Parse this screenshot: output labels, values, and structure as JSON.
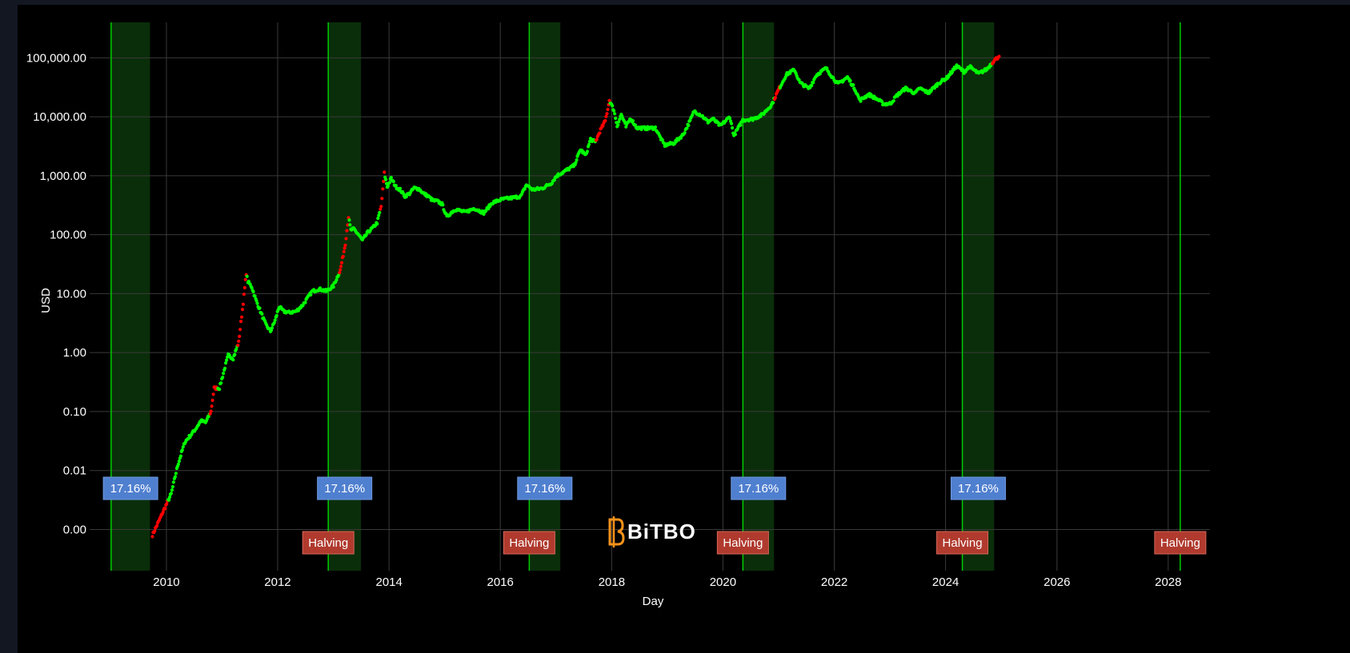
{
  "chart_data": {
    "type": "scatter",
    "xlabel": "Day",
    "ylabel": "USD",
    "y_scale": "log",
    "ylim": [
      0.0002,
      400000
    ],
    "xlim": [
      "2008-08-15",
      "2028-10-01"
    ],
    "x_ticks": [
      "2010",
      "2012",
      "2014",
      "2016",
      "2018",
      "2020",
      "2022",
      "2024",
      "2026",
      "2028"
    ],
    "y_ticks": [
      {
        "value": 0.001,
        "label": "0.00"
      },
      {
        "value": 0.01,
        "label": "0.01"
      },
      {
        "value": 0.1,
        "label": "0.10"
      },
      {
        "value": 1,
        "label": "1.00"
      },
      {
        "value": 10,
        "label": "10.00"
      },
      {
        "value": 100,
        "label": "100.00"
      },
      {
        "value": 1000,
        "label": "1,000.00"
      },
      {
        "value": 10000,
        "label": "10,000.00"
      },
      {
        "value": 100000,
        "label": "100,000.00"
      }
    ],
    "grid": true,
    "colors": {
      "background": "#000000",
      "grid": "#3a3a3a",
      "price_up": "#00ff00",
      "price_highlight": "#ff0000",
      "halving_line": "#00cc00",
      "band_fill": "#0a2e0a",
      "pct_label_bg": "#4f7fcf",
      "halving_label_bg": "#b03a2e"
    },
    "price_series": [
      [
        "2009-10-01",
        0.0008
      ],
      [
        "2010-02-01",
        0.004
      ],
      [
        "2010-03-15",
        0.012
      ],
      [
        "2010-05-01",
        0.03
      ],
      [
        "2010-07-10",
        0.05
      ],
      [
        "2010-08-15",
        0.07
      ],
      [
        "2010-09-15",
        0.065
      ],
      [
        "2010-10-20",
        0.1
      ],
      [
        "2010-11-10",
        0.25
      ],
      [
        "2010-12-15",
        0.25
      ],
      [
        "2011-02-10",
        0.9
      ],
      [
        "2011-03-15",
        0.8
      ],
      [
        "2011-04-20",
        1.5
      ],
      [
        "2011-05-20",
        7
      ],
      [
        "2011-06-08",
        22
      ],
      [
        "2011-06-20",
        16
      ],
      [
        "2011-07-15",
        13
      ],
      [
        "2011-08-10",
        8
      ],
      [
        "2011-09-10",
        5
      ],
      [
        "2011-10-15",
        3
      ],
      [
        "2011-11-15",
        2.3
      ],
      [
        "2011-12-15",
        3.5
      ],
      [
        "2012-01-10",
        6
      ],
      [
        "2012-02-10",
        5
      ],
      [
        "2012-03-15",
        4.8
      ],
      [
        "2012-05-01",
        5
      ],
      [
        "2012-06-15",
        6.5
      ],
      [
        "2012-08-15",
        11
      ],
      [
        "2012-10-01",
        12
      ],
      [
        "2012-11-15",
        11
      ],
      [
        "2013-01-01",
        13.5
      ],
      [
        "2013-02-15",
        25
      ],
      [
        "2013-03-20",
        70
      ],
      [
        "2013-04-10",
        200
      ],
      [
        "2013-04-25",
        120
      ],
      [
        "2013-05-15",
        125
      ],
      [
        "2013-06-15",
        100
      ],
      [
        "2013-07-10",
        80
      ],
      [
        "2013-08-15",
        110
      ],
      [
        "2013-09-15",
        130
      ],
      [
        "2013-10-15",
        160
      ],
      [
        "2013-11-10",
        300
      ],
      [
        "2013-12-01",
        1100
      ],
      [
        "2013-12-20",
        650
      ],
      [
        "2014-01-15",
        900
      ],
      [
        "2014-02-15",
        650
      ],
      [
        "2014-03-15",
        580
      ],
      [
        "2014-04-15",
        450
      ],
      [
        "2014-05-15",
        500
      ],
      [
        "2014-06-15",
        620
      ],
      [
        "2014-07-15",
        600
      ],
      [
        "2014-08-15",
        500
      ],
      [
        "2014-09-15",
        450
      ],
      [
        "2014-10-15",
        380
      ],
      [
        "2014-11-15",
        370
      ],
      [
        "2014-12-15",
        330
      ],
      [
        "2015-01-15",
        200
      ],
      [
        "2015-02-15",
        240
      ],
      [
        "2015-03-15",
        270
      ],
      [
        "2015-05-15",
        240
      ],
      [
        "2015-07-15",
        280
      ],
      [
        "2015-09-15",
        235
      ],
      [
        "2015-11-10",
        350
      ],
      [
        "2016-01-15",
        400
      ],
      [
        "2016-03-15",
        420
      ],
      [
        "2016-05-15",
        450
      ],
      [
        "2016-06-20",
        700
      ],
      [
        "2016-08-01",
        580
      ],
      [
        "2016-10-01",
        610
      ],
      [
        "2016-12-01",
        750
      ],
      [
        "2017-01-05",
        1000
      ],
      [
        "2017-03-01",
        1200
      ],
      [
        "2017-05-01",
        1500
      ],
      [
        "2017-06-10",
        2800
      ],
      [
        "2017-07-15",
        2200
      ],
      [
        "2017-08-15",
        4200
      ],
      [
        "2017-09-15",
        3700
      ],
      [
        "2017-10-20",
        6000
      ],
      [
        "2017-11-20",
        8500
      ],
      [
        "2017-12-17",
        19000
      ],
      [
        "2018-01-15",
        13000
      ],
      [
        "2018-02-06",
        7000
      ],
      [
        "2018-03-05",
        11000
      ],
      [
        "2018-04-05",
        6800
      ],
      [
        "2018-05-05",
        9500
      ],
      [
        "2018-06-15",
        6500
      ],
      [
        "2018-08-15",
        6400
      ],
      [
        "2018-10-15",
        6500
      ],
      [
        "2018-11-25",
        4000
      ],
      [
        "2018-12-15",
        3300
      ],
      [
        "2019-02-15",
        3600
      ],
      [
        "2019-04-15",
        5000
      ],
      [
        "2019-05-30",
        8500
      ],
      [
        "2019-06-26",
        12500
      ],
      [
        "2019-08-15",
        10500
      ],
      [
        "2019-09-25",
        8200
      ],
      [
        "2019-10-26",
        9300
      ],
      [
        "2019-12-15",
        7000
      ],
      [
        "2020-02-15",
        10000
      ],
      [
        "2020-03-13",
        4800
      ],
      [
        "2020-05-10",
        8800
      ],
      [
        "2020-07-15",
        9200
      ],
      [
        "2020-09-15",
        10800
      ],
      [
        "2020-11-15",
        16000
      ],
      [
        "2020-12-31",
        29000
      ],
      [
        "2021-02-20",
        52000
      ],
      [
        "2021-04-14",
        63000
      ],
      [
        "2021-05-20",
        38000
      ],
      [
        "2021-07-20",
        30000
      ],
      [
        "2021-09-05",
        51000
      ],
      [
        "2021-11-08",
        67000
      ],
      [
        "2021-12-20",
        47000
      ],
      [
        "2022-01-25",
        36000
      ],
      [
        "2022-03-28",
        47000
      ],
      [
        "2022-05-15",
        30000
      ],
      [
        "2022-06-18",
        19000
      ],
      [
        "2022-08-15",
        24000
      ],
      [
        "2022-10-15",
        19500
      ],
      [
        "2022-11-20",
        16500
      ],
      [
        "2023-01-05",
        16800
      ],
      [
        "2023-02-15",
        23000
      ],
      [
        "2023-04-14",
        30500
      ],
      [
        "2023-06-15",
        25000
      ],
      [
        "2023-07-15",
        30500
      ],
      [
        "2023-09-11",
        25500
      ],
      [
        "2023-11-15",
        37000
      ],
      [
        "2024-01-10",
        46000
      ],
      [
        "2024-03-14",
        73000
      ],
      [
        "2024-05-01",
        58000
      ],
      [
        "2024-06-07",
        71000
      ],
      [
        "2024-08-05",
        54000
      ],
      [
        "2024-09-30",
        65000
      ],
      [
        "2024-11-13",
        90000
      ],
      [
        "2024-12-17",
        106000
      ]
    ],
    "red_ranges": [
      [
        "2009-09-20",
        "2010-01-10"
      ],
      [
        "2010-10-15",
        "2010-12-01"
      ],
      [
        "2011-04-10",
        "2011-06-10"
      ],
      [
        "2013-02-10",
        "2013-04-10"
      ],
      [
        "2013-11-01",
        "2013-12-02"
      ],
      [
        "2017-09-20",
        "2017-12-17"
      ],
      [
        "2020-12-01",
        "2021-01-10"
      ],
      [
        "2024-11-01",
        "2024-12-20"
      ]
    ],
    "halvings": [
      "2009-01-03",
      "2012-11-28",
      "2016-07-09",
      "2020-05-11",
      "2024-04-20",
      "2028-03-20"
    ],
    "halving_label": "Halving",
    "bands": [
      {
        "start": "2009-01-03",
        "end": "2009-09-15",
        "label": "17.16%"
      },
      {
        "start": "2012-11-28",
        "end": "2013-07-01",
        "label": "17.16%"
      },
      {
        "start": "2016-07-09",
        "end": "2017-01-29",
        "label": "17.16%"
      },
      {
        "start": "2020-05-11",
        "end": "2020-12-01",
        "label": "17.16%"
      },
      {
        "start": "2024-04-20",
        "end": "2024-11-15",
        "label": "17.16%"
      }
    ],
    "watermark": "BiTBO"
  }
}
